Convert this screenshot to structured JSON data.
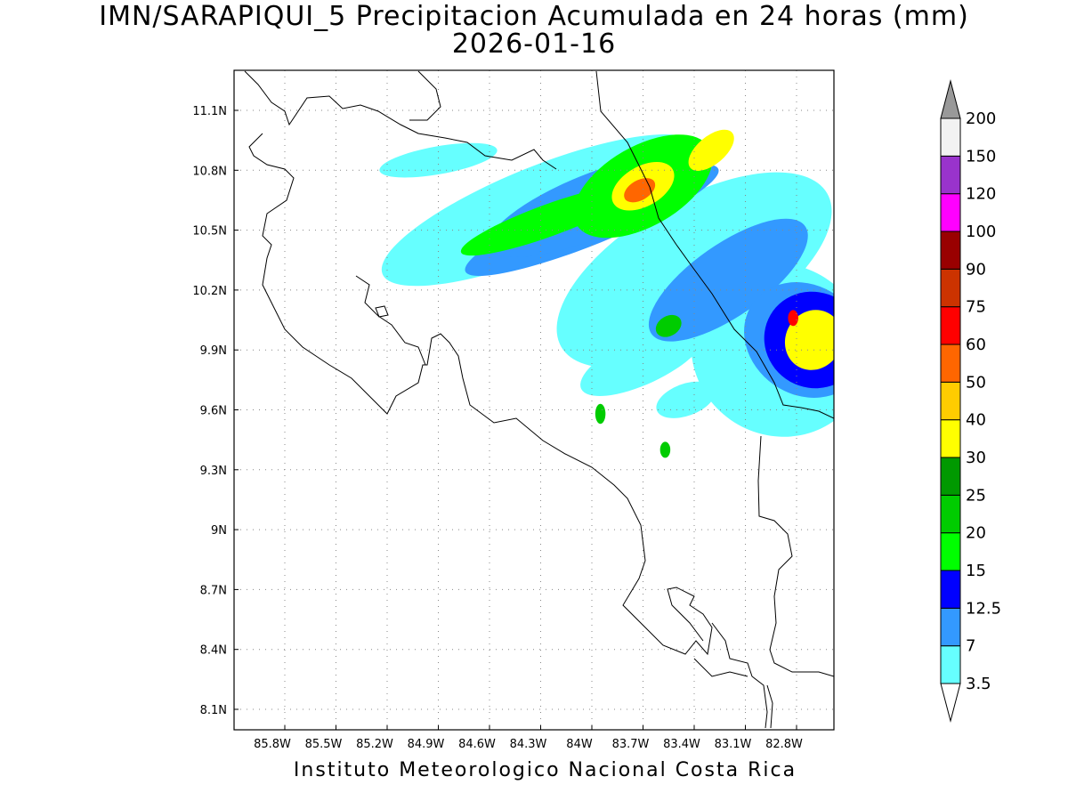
{
  "title_line1": "IMN/SARAPIQUI_5 Precipitacion Acumulada en 24 horas (mm)",
  "title_line2": "2026-01-16",
  "footer": "Instituto Meteorologico Nacional Costa Rica",
  "lat_ticks": [
    "11.1N",
    "10.8N",
    "10.5N",
    "10.2N",
    "9.9N",
    "9.6N",
    "9.3N",
    "9N",
    "8.7N",
    "8.4N",
    "8.1N"
  ],
  "lon_ticks": [
    "85.8W",
    "85.5W",
    "85.2W",
    "84.9W",
    "84.6W",
    "84.3W",
    "84W",
    "83.7W",
    "83.4W",
    "83.1W",
    "82.8W"
  ],
  "colorbar": {
    "levels": [
      "3.5",
      "7",
      "12.5",
      "15",
      "20",
      "25",
      "30",
      "40",
      "50",
      "60",
      "75",
      "90",
      "100",
      "120",
      "150",
      "200"
    ],
    "colors": [
      "#ffffff",
      "#66ffff",
      "#3399ff",
      "#0000ff",
      "#00ff00",
      "#00cc00",
      "#009900",
      "#ffff00",
      "#ffcc00",
      "#ff6600",
      "#ff0000",
      "#cc3300",
      "#990000",
      "#ff00ff",
      "#9933cc",
      "#f2f2f2",
      "#999999"
    ]
  },
  "rain_cells": [
    {
      "lon": -84.0,
      "lat": 10.62,
      "rx": 0.65,
      "ry": 0.16,
      "rot": -22,
      "level": 2
    },
    {
      "lon": -84.25,
      "lat": 10.55,
      "rx": 0.55,
      "ry": 0.08,
      "rot": -20,
      "level": 4
    },
    {
      "lon": -83.7,
      "lat": 10.72,
      "rx": 0.45,
      "ry": 0.2,
      "rot": -30,
      "level": 4
    },
    {
      "lon": -83.7,
      "lat": 10.72,
      "rx": 0.2,
      "ry": 0.1,
      "rot": -30,
      "level": 7
    },
    {
      "lon": -83.72,
      "lat": 10.7,
      "rx": 0.1,
      "ry": 0.05,
      "rot": -30,
      "level": 9
    },
    {
      "lon": -83.3,
      "lat": 10.9,
      "rx": 0.16,
      "ry": 0.07,
      "rot": -40,
      "level": 7
    },
    {
      "lon": -82.7,
      "lat": 9.95,
      "rx": 0.28,
      "ry": 0.25,
      "rot": -60,
      "level": 3
    },
    {
      "lon": -82.7,
      "lat": 9.95,
      "rx": 0.18,
      "ry": 0.14,
      "rot": -60,
      "level": 7
    },
    {
      "lon": -82.82,
      "lat": 10.06,
      "rx": 0.03,
      "ry": 0.04,
      "rot": 0,
      "level": 10
    },
    {
      "lon": -83.55,
      "lat": 10.02,
      "rx": 0.08,
      "ry": 0.05,
      "rot": -30,
      "level": 5
    },
    {
      "lon": -83.95,
      "lat": 9.58,
      "rx": 0.03,
      "ry": 0.05,
      "rot": 0,
      "level": 5
    },
    {
      "lon": -83.57,
      "lat": 9.4,
      "rx": 0.03,
      "ry": 0.04,
      "rot": 0,
      "level": 5
    }
  ]
}
